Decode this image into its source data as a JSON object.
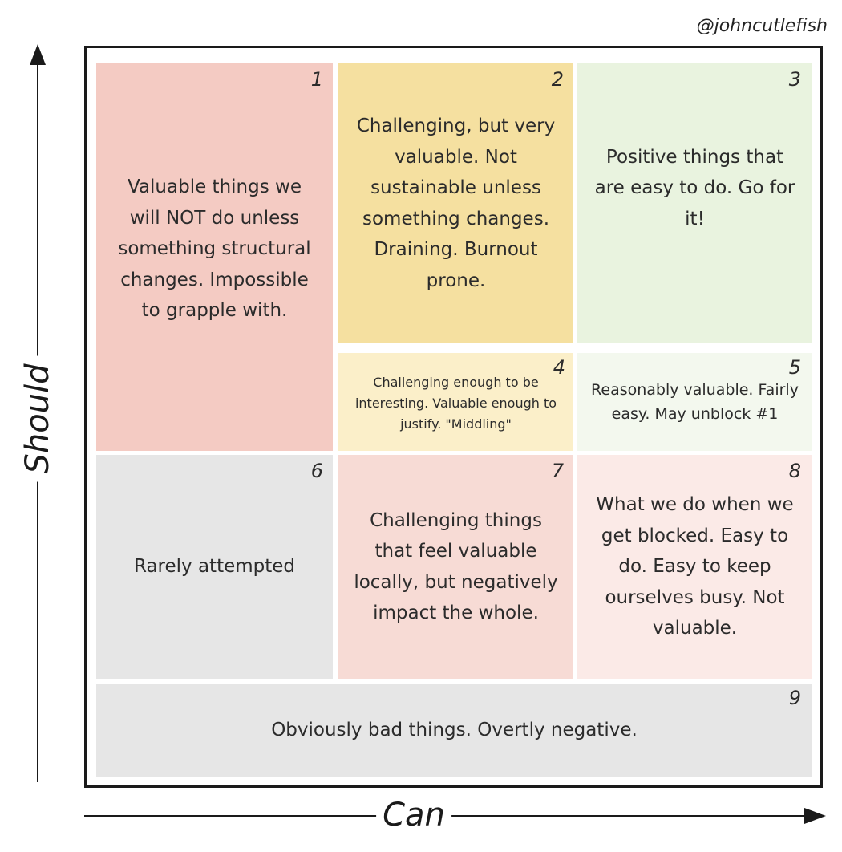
{
  "credit": "@johncutlefish",
  "axes": {
    "y_label": "Should",
    "x_label": "Can"
  },
  "cells": [
    {
      "number": "1",
      "text": "Valuable things we will NOT do unless something structural changes. Impossible to grapple with.",
      "color": "#f4cbc3"
    },
    {
      "number": "2",
      "text": "Challenging, but very valuable. Not sustainable unless something changes. Draining. Burnout prone.",
      "color": "#f5e0a0"
    },
    {
      "number": "3",
      "text": "Positive things that are easy to do. Go for it!",
      "color": "#e9f3df"
    },
    {
      "number": "4",
      "text": "Challenging enough to be interesting. Valuable enough to justify. \"Middling\"",
      "color": "#fbefc9"
    },
    {
      "number": "5",
      "text": "Reasonably valuable. Fairly easy. May unblock #1",
      "color": "#f3f8ee"
    },
    {
      "number": "6",
      "text": "Rarely attempted",
      "color": "#e6e6e6"
    },
    {
      "number": "7",
      "text": "Challenging things that feel valuable locally, but negatively impact the whole.",
      "color": "#f7dbd5"
    },
    {
      "number": "8",
      "text": "What we do when we get blocked. Easy to do. Easy to keep ourselves busy. Not valuable.",
      "color": "#fbeae7"
    },
    {
      "number": "9",
      "text": "Obviously bad things. Overtly negative.",
      "color": "#e6e6e6"
    }
  ]
}
